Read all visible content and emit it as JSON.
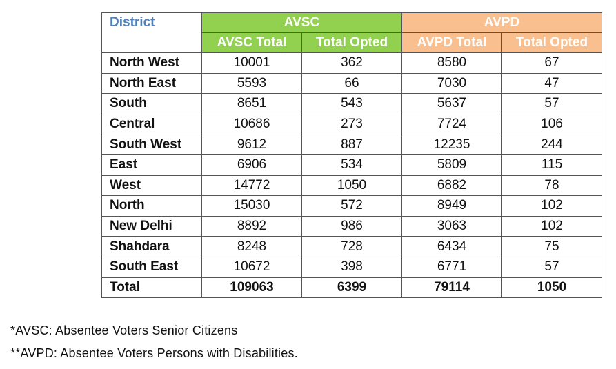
{
  "table": {
    "header": {
      "district": "District",
      "groups": [
        "AVSC",
        "AVPD"
      ],
      "subheaders": [
        "AVSC Total",
        "Total Opted",
        "AVPD Total",
        "Total Opted"
      ]
    },
    "rows": [
      [
        "North West",
        10001,
        362,
        8580,
        67
      ],
      [
        "North East",
        5593,
        66,
        7030,
        47
      ],
      [
        "South",
        8651,
        543,
        5637,
        57
      ],
      [
        "Central",
        10686,
        273,
        7724,
        106
      ],
      [
        "South West",
        9612,
        887,
        12235,
        244
      ],
      [
        "East",
        6906,
        534,
        5809,
        115
      ],
      [
        "West",
        14772,
        1050,
        6882,
        78
      ],
      [
        "North",
        15030,
        572,
        8949,
        102
      ],
      [
        "New Delhi",
        8892,
        986,
        3063,
        102
      ],
      [
        "Shahdara",
        8248,
        728,
        6434,
        75
      ],
      [
        "South East",
        10672,
        398,
        6771,
        57
      ],
      [
        "Total",
        109063,
        6399,
        79114,
        1050
      ]
    ]
  },
  "footnotes": [
    "*AVSC: Absentee Voters Senior Citizens",
    "**AVPD: Absentee Voters Persons with Disabilities."
  ]
}
